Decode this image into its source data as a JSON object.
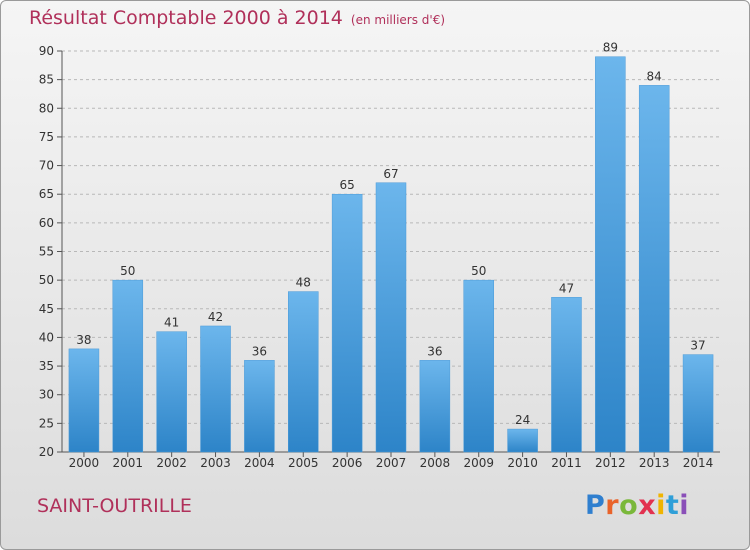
{
  "title": "Résultat Comptable 2000 à 2014",
  "unit_note": "(en milliers d'€)",
  "commune": "SAINT-OUTRILLE",
  "logo": {
    "text": "Proxiti",
    "letter_colors": [
      "#2f7fcf",
      "#e9632a",
      "#7ab83a",
      "#e2314f",
      "#f0b400",
      "#2f9fd8",
      "#8a4fb8"
    ]
  },
  "colors": {
    "bar_top": "#6cb6ec",
    "bar_bottom": "#2d84c8",
    "title": "#b0305a",
    "axis_text": "#333333",
    "grid": "#b8b8b8"
  },
  "chart_data": {
    "type": "bar",
    "title": "Résultat Comptable 2000 à 2014",
    "categories": [
      "2000",
      "2001",
      "2002",
      "2003",
      "2004",
      "2005",
      "2006",
      "2007",
      "2008",
      "2009",
      "2010",
      "2011",
      "2012",
      "2013",
      "2014"
    ],
    "values": [
      38,
      50,
      41,
      42,
      36,
      48,
      65,
      67,
      36,
      50,
      24,
      47,
      89,
      84,
      37
    ],
    "ylim": [
      20,
      90
    ],
    "yticks": [
      20,
      25,
      30,
      35,
      40,
      45,
      50,
      55,
      60,
      65,
      70,
      75,
      80,
      85,
      90
    ],
    "xlabel": "",
    "ylabel": "",
    "grid": true
  }
}
